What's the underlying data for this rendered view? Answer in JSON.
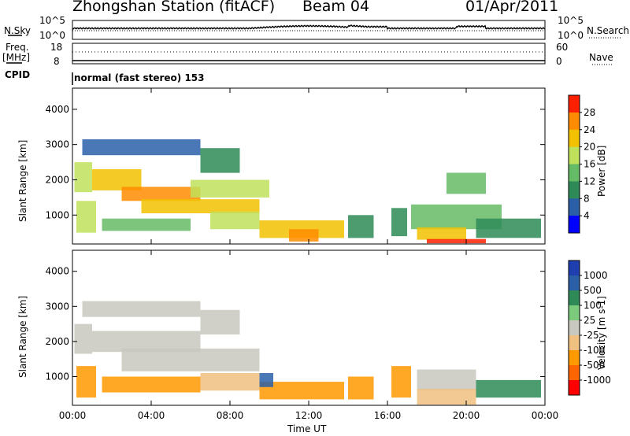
{
  "header": {
    "station": "Zhongshan Station (fitACF)",
    "beam": "Beam 04",
    "date": "01/Apr/2011"
  },
  "left_labels": {
    "nsky": "N.Sky",
    "freq": "Freq.",
    "freq_unit": "[MHz]",
    "cpid": "CPID"
  },
  "right_labels": {
    "nsearch": "N.Search",
    "nave": "Nave"
  },
  "panel_ticks": {
    "nsky_left_top": "10^5",
    "nsky_left_bottom": "10^0",
    "nsky_right_top": "10^5",
    "nsky_right_bottom": "10^0",
    "freq_left_top": "18",
    "freq_left_bottom": "8",
    "freq_right_top": "60",
    "freq_right_bottom": "0"
  },
  "cpid_text": "normal (fast stereo) 153",
  "colors": {
    "power": [
      "#0000ff",
      "#2a5fa8",
      "#2e8b57",
      "#66bb66",
      "#bfe05a",
      "#f2c200",
      "#ff8c00",
      "#ff2000"
    ],
    "velocity": [
      "#ff0000",
      "#ff6600",
      "#ff9900",
      "#f0c080",
      "#c8c8c0",
      "#7ccb7c",
      "#2e8b57",
      "#2a5fa8",
      "#1f3fb0"
    ]
  },
  "chart_data": [
    {
      "type": "heatmap",
      "name": "power",
      "ylabel": "Slant Range [km]",
      "xlabel": "",
      "x_ticks": [
        "00:00",
        "04:00",
        "08:00",
        "12:00",
        "16:00",
        "20:00",
        "00:00"
      ],
      "y_ticks": [
        "1000",
        "2000",
        "3000",
        "4000"
      ],
      "ylim": [
        180,
        4600
      ],
      "xlim": [
        0,
        24
      ],
      "colorbar_label": "Power [dB]",
      "colorbar_ticks": [
        "4",
        "8",
        "12",
        "16",
        "20",
        "24",
        "28"
      ],
      "clim": [
        0,
        32
      ],
      "bands": [
        {
          "t0": 0.1,
          "t1": 1.0,
          "r0": 1650,
          "r1": 2500,
          "level": 18
        },
        {
          "t0": 0.2,
          "t1": 1.2,
          "r0": 500,
          "r1": 1400,
          "level": 16
        },
        {
          "t0": 1.0,
          "t1": 3.5,
          "r0": 1700,
          "r1": 2300,
          "level": 22
        },
        {
          "t0": 2.5,
          "t1": 6.5,
          "r0": 1400,
          "r1": 1800,
          "level": 24
        },
        {
          "t0": 3.5,
          "t1": 9.5,
          "r0": 1050,
          "r1": 1450,
          "level": 20
        },
        {
          "t0": 1.5,
          "t1": 6.0,
          "r0": 550,
          "r1": 900,
          "level": 12
        },
        {
          "t0": 6.0,
          "t1": 10.0,
          "r0": 1500,
          "r1": 2000,
          "level": 16
        },
        {
          "t0": 6.5,
          "t1": 8.5,
          "r0": 2200,
          "r1": 2900,
          "level": 10
        },
        {
          "t0": 0.5,
          "t1": 6.5,
          "r0": 2700,
          "r1": 3150,
          "level": 6
        },
        {
          "t0": 7.0,
          "t1": 9.5,
          "r0": 600,
          "r1": 1100,
          "level": 18
        },
        {
          "t0": 9.5,
          "t1": 13.8,
          "r0": 350,
          "r1": 850,
          "level": 20
        },
        {
          "t0": 11.0,
          "t1": 12.5,
          "r0": 250,
          "r1": 600,
          "level": 26
        },
        {
          "t0": 14.0,
          "t1": 15.3,
          "r0": 350,
          "r1": 1000,
          "level": 8
        },
        {
          "t0": 16.2,
          "t1": 17.0,
          "r0": 400,
          "r1": 1200,
          "level": 10
        },
        {
          "t0": 17.2,
          "t1": 21.8,
          "r0": 600,
          "r1": 1300,
          "level": 14
        },
        {
          "t0": 17.5,
          "t1": 20.0,
          "r0": 300,
          "r1": 650,
          "level": 22
        },
        {
          "t0": 18.0,
          "t1": 21.0,
          "r0": 200,
          "r1": 320,
          "level": 30
        },
        {
          "t0": 20.5,
          "t1": 23.8,
          "r0": 350,
          "r1": 900,
          "level": 8
        },
        {
          "t0": 19.0,
          "t1": 21.0,
          "r0": 1600,
          "r1": 2200,
          "level": 14
        }
      ]
    },
    {
      "type": "heatmap",
      "name": "velocity",
      "ylabel": "Slant Range [km]",
      "xlabel": "Time UT",
      "x_ticks": [
        "00:00",
        "04:00",
        "08:00",
        "12:00",
        "16:00",
        "20:00",
        "00:00"
      ],
      "y_ticks": [
        "1000",
        "2000",
        "3000",
        "4000"
      ],
      "ylim": [
        180,
        4600
      ],
      "xlim": [
        0,
        24
      ],
      "colorbar_label": "Velocity [m s-1]",
      "colorbar_ticks": [
        "1000",
        "500",
        "100",
        "25",
        "-25",
        "-100",
        "-500",
        "-1000"
      ],
      "bands": [
        {
          "t0": 0.1,
          "t1": 1.0,
          "r0": 1650,
          "r1": 2500,
          "v": 10
        },
        {
          "t0": 0.2,
          "t1": 1.2,
          "r0": 400,
          "r1": 1300,
          "v": -300
        },
        {
          "t0": 1.0,
          "t1": 6.5,
          "r0": 1700,
          "r1": 2300,
          "v": 0
        },
        {
          "t0": 2.5,
          "t1": 9.5,
          "r0": 1150,
          "r1": 1800,
          "v": 0
        },
        {
          "t0": 1.5,
          "t1": 6.5,
          "r0": 550,
          "r1": 1000,
          "v": -300
        },
        {
          "t0": 6.5,
          "t1": 8.5,
          "r0": 2200,
          "r1": 2900,
          "v": 10
        },
        {
          "t0": 0.5,
          "t1": 6.5,
          "r0": 2700,
          "r1": 3150,
          "v": 10
        },
        {
          "t0": 6.5,
          "t1": 9.5,
          "r0": 600,
          "r1": 1100,
          "v": -80
        },
        {
          "t0": 9.5,
          "t1": 13.8,
          "r0": 350,
          "r1": 850,
          "v": -300
        },
        {
          "t0": 14.0,
          "t1": 15.3,
          "r0": 350,
          "r1": 1000,
          "v": -300
        },
        {
          "t0": 16.2,
          "t1": 17.2,
          "r0": 400,
          "r1": 1300,
          "v": -300
        },
        {
          "t0": 17.5,
          "t1": 20.5,
          "r0": 600,
          "r1": 1200,
          "v": 0
        },
        {
          "t0": 17.5,
          "t1": 20.5,
          "r0": 200,
          "r1": 650,
          "v": -80
        },
        {
          "t0": 20.5,
          "t1": 23.8,
          "r0": 400,
          "r1": 900,
          "v": 150
        },
        {
          "t0": 9.5,
          "t1": 10.2,
          "r0": 700,
          "r1": 1100,
          "v": 600
        }
      ]
    }
  ]
}
